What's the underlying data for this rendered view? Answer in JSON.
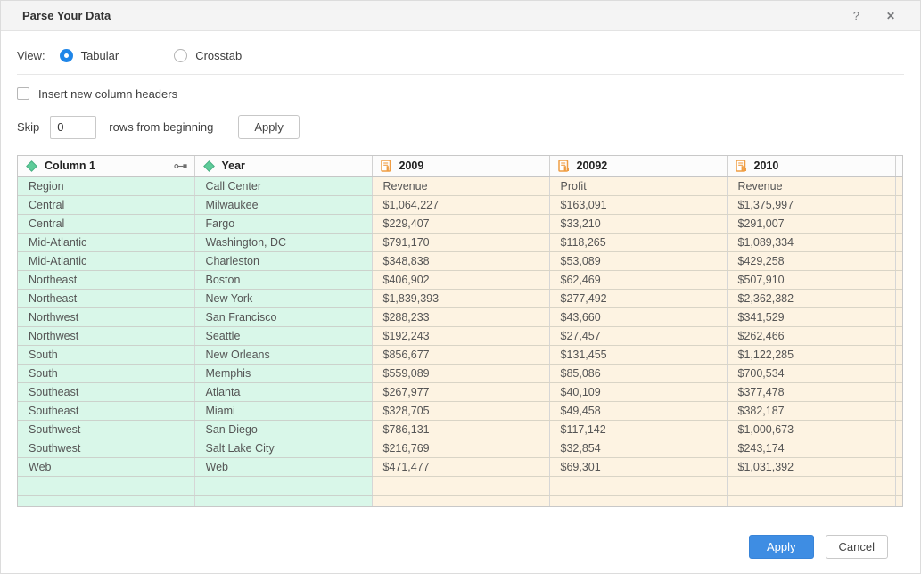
{
  "dialog": {
    "title": "Parse Your Data",
    "help_icon": "?",
    "close_icon": "✕"
  },
  "view": {
    "label": "View:",
    "options": [
      {
        "label": "Tabular",
        "selected": true
      },
      {
        "label": "Crosstab",
        "selected": false
      }
    ]
  },
  "options": {
    "insert_headers_label": "Insert new column headers",
    "insert_headers_checked": false,
    "skip_label": "Skip",
    "skip_value": "0",
    "skip_suffix": "rows from beginning",
    "apply_label": "Apply"
  },
  "table": {
    "columns": [
      {
        "label": "Column 1",
        "type": "dimension",
        "has_drag_icon": true
      },
      {
        "label": "Year",
        "type": "dimension",
        "has_drag_icon": false
      },
      {
        "label": "2009",
        "type": "measure",
        "has_drag_icon": false
      },
      {
        "label": "20092",
        "type": "measure",
        "has_drag_icon": false
      },
      {
        "label": "2010",
        "type": "measure",
        "has_drag_icon": false
      }
    ],
    "rows": [
      [
        "Region",
        "Call Center",
        "Revenue",
        "Profit",
        "Revenue"
      ],
      [
        "Central",
        "Milwaukee",
        "$1,064,227",
        "$163,091",
        "$1,375,997"
      ],
      [
        "Central",
        "Fargo",
        "$229,407",
        "$33,210",
        "$291,007"
      ],
      [
        "Mid-Atlantic",
        "Washington, DC",
        "$791,170",
        "$118,265",
        "$1,089,334"
      ],
      [
        "Mid-Atlantic",
        "Charleston",
        "$348,838",
        "$53,089",
        "$429,258"
      ],
      [
        "Northeast",
        "Boston",
        "$406,902",
        "$62,469",
        "$507,910"
      ],
      [
        "Northeast",
        "New York",
        "$1,839,393",
        "$277,492",
        "$2,362,382"
      ],
      [
        "Northwest",
        "San Francisco",
        "$288,233",
        "$43,660",
        "$341,529"
      ],
      [
        "Northwest",
        "Seattle",
        "$192,243",
        "$27,457",
        "$262,466"
      ],
      [
        "South",
        "New Orleans",
        "$856,677",
        "$131,455",
        "$1,122,285"
      ],
      [
        "South",
        "Memphis",
        "$559,089",
        "$85,086",
        "$700,534"
      ],
      [
        "Southeast",
        "Atlanta",
        "$267,977",
        "$40,109",
        "$377,478"
      ],
      [
        "Southeast",
        "Miami",
        "$328,705",
        "$49,458",
        "$382,187"
      ],
      [
        "Southwest",
        "San Diego",
        "$786,131",
        "$117,142",
        "$1,000,673"
      ],
      [
        "Southwest",
        "Salt Lake City",
        "$216,769",
        "$32,854",
        "$243,174"
      ],
      [
        "Web",
        "Web",
        "$471,477",
        "$69,301",
        "$1,031,392"
      ],
      [
        "",
        "",
        "",
        "",
        ""
      ],
      [
        "",
        "",
        "",
        "",
        ""
      ]
    ]
  },
  "footer": {
    "apply_label": "Apply",
    "cancel_label": "Cancel"
  },
  "colors": {
    "accent_blue": "#3e8de3",
    "dimension_cell_bg": "#d9f7e9",
    "measure_cell_bg": "#fdf3e2",
    "dimension_icon_green": "#5ecb99",
    "measure_icon_orange": "#ef9d43"
  }
}
